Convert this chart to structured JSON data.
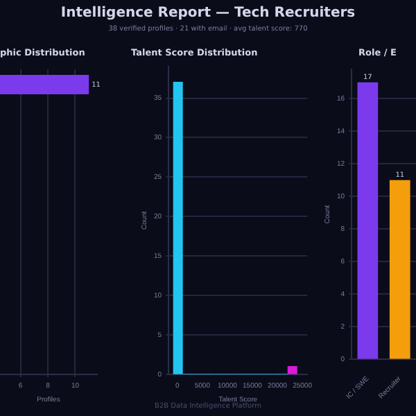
{
  "chart_data": [
    {
      "type": "other",
      "title": "Intelligence Report — Tech Recruiters",
      "subtitle": "38 verified profiles · 21 with email · avg talent score: 770",
      "annotations": [
        "B2B Data Intelligence Platform"
      ]
    },
    {
      "type": "bar",
      "title": "phic Distribution",
      "orientation": "horizontal",
      "categories": [
        null,
        null,
        null,
        null,
        null,
        null,
        null,
        null,
        null,
        null
      ],
      "values": [
        11,
        null,
        null,
        null,
        null,
        null,
        null,
        null,
        null,
        null
      ],
      "color": "#7c3aed",
      "xlabel": "Profiles",
      "xlim": [
        4.5,
        11.6
      ],
      "xticks": [
        6,
        8,
        10
      ],
      "grid": "x",
      "data_labels": true
    },
    {
      "type": "histogram",
      "title": "Talent Score Distribution",
      "xlabel": "Talent Score",
      "ylabel": "Count",
      "bins": [
        -750,
        1010,
        2770,
        4530,
        6290,
        8050,
        9810,
        11570,
        13330,
        15090,
        16850,
        18610,
        20370,
        22130,
        23890
      ],
      "values": [
        37,
        0,
        0,
        0,
        0,
        0,
        0,
        0,
        0,
        0,
        0,
        0,
        0,
        1
      ],
      "colors": [
        "#22c5f0",
        "#22c5f0",
        "#22c5f0",
        "#22c5f0",
        "#22c5f0",
        "#22c5f0",
        "#22c5f0",
        "#22c5f0",
        "#22c5f0",
        "#22c5f0",
        "#22c5f0",
        "#22c5f0",
        "#22c5f0",
        "#d91ad9"
      ],
      "xlim": [
        -1750,
        26000
      ],
      "xticks": [
        0,
        5000,
        10000,
        15000,
        20000,
        25000
      ],
      "ylim": [
        0,
        39
      ],
      "yticks": [
        0,
        5,
        10,
        15,
        20,
        25,
        30,
        35
      ],
      "grid": "y"
    },
    {
      "type": "bar",
      "title": "Role / E",
      "categories": [
        "IC / SWE",
        "Recruiter"
      ],
      "values": [
        17,
        11
      ],
      "colors": [
        "#7c3aed",
        "#f59e0b"
      ],
      "ylabel": "Count",
      "ylim": [
        0,
        17.8
      ],
      "yticks": [
        0,
        2,
        4,
        6,
        8,
        10,
        12,
        14,
        16
      ],
      "grid": "y",
      "data_labels": true
    }
  ]
}
